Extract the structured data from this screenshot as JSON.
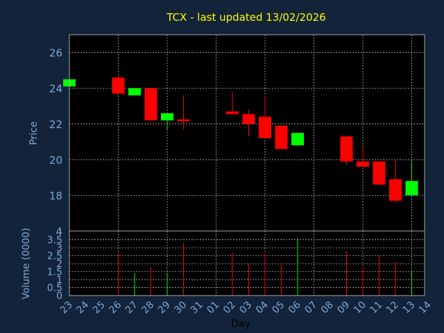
{
  "colors": {
    "background": "#12233a",
    "plot_background": "#000000",
    "title": "#ffff00",
    "axis_text": "#7ea9d6",
    "grid": "#cccccc",
    "up": "#00ff00",
    "down": "#ff0000"
  },
  "chart_data": {
    "type": "candlestick",
    "title": "TCX - last updated 13/02/2026",
    "xlabel": "Day",
    "price_panel": {
      "ylabel": "Price",
      "ylim": [
        16,
        27
      ],
      "yticks": [
        "18",
        "20",
        "22",
        "24",
        "26"
      ]
    },
    "volume_panel": {
      "ylabel": "Volume (0000)",
      "ylim": [
        0,
        3.7
      ],
      "yticks": [
        "0",
        "0.5",
        "1",
        "1.5",
        "2",
        "2.5",
        "3",
        "3.5"
      ],
      "top_tick": "4"
    },
    "x_tick_labels": [
      "23",
      "24",
      "25",
      "26",
      "27",
      "28",
      "29",
      "30",
      "31",
      "01",
      "02",
      "03",
      "04",
      "05",
      "06",
      "07",
      "08",
      "09",
      "10",
      "11",
      "12",
      "13",
      "14"
    ],
    "x_grid_labels": [
      "23",
      "26",
      "29",
      "01",
      "04",
      "07",
      "10",
      "13"
    ],
    "candles": [
      {
        "day": "23",
        "open": 24.1,
        "close": 24.5,
        "high": 24.5,
        "low": 24.1,
        "volume": 0
      },
      {
        "day": "26",
        "open": 24.6,
        "close": 23.7,
        "high": 24.7,
        "low": 23.6,
        "volume": 2.7
      },
      {
        "day": "27",
        "open": 23.6,
        "close": 24.0,
        "high": 24.0,
        "low": 23.6,
        "volume": 1.4
      },
      {
        "day": "28",
        "open": 24.0,
        "close": 22.2,
        "high": 24.0,
        "low": 22.2,
        "volume": 1.8
      },
      {
        "day": "29",
        "open": 22.2,
        "close": 22.6,
        "high": 22.6,
        "low": 21.7,
        "volume": 1.4
      },
      {
        "day": "30",
        "open": 22.25,
        "close": 22.15,
        "high": 23.6,
        "low": 21.7,
        "volume": 3.3
      },
      {
        "day": "02",
        "open": 22.7,
        "close": 22.55,
        "high": 23.8,
        "low": 22.5,
        "volume": 2.7
      },
      {
        "day": "03",
        "open": 22.55,
        "close": 22.0,
        "high": 22.8,
        "low": 21.3,
        "volume": 2.0
      },
      {
        "day": "04",
        "open": 22.4,
        "close": 21.2,
        "high": 23.6,
        "low": 21.2,
        "volume": 2.7
      },
      {
        "day": "05",
        "open": 21.9,
        "close": 20.6,
        "high": 21.9,
        "low": 20.6,
        "volume": 2.0
      },
      {
        "day": "06",
        "open": 20.8,
        "close": 21.5,
        "high": 21.5,
        "low": 20.8,
        "volume": 3.6
      },
      {
        "day": "09",
        "open": 21.3,
        "close": 19.9,
        "high": 21.3,
        "low": 19.7,
        "volume": 2.8
      },
      {
        "day": "10",
        "open": 19.9,
        "close": 19.6,
        "high": 20.7,
        "low": 19.6,
        "volume": 1.8
      },
      {
        "day": "11",
        "open": 19.9,
        "close": 18.6,
        "high": 19.9,
        "low": 18.6,
        "volume": 2.5
      },
      {
        "day": "12",
        "open": 18.9,
        "close": 17.7,
        "high": 20.0,
        "low": 17.6,
        "volume": 2.1
      },
      {
        "day": "13",
        "open": 18.0,
        "close": 18.8,
        "high": 19.9,
        "low": 18.0,
        "volume": 1.6
      }
    ]
  }
}
